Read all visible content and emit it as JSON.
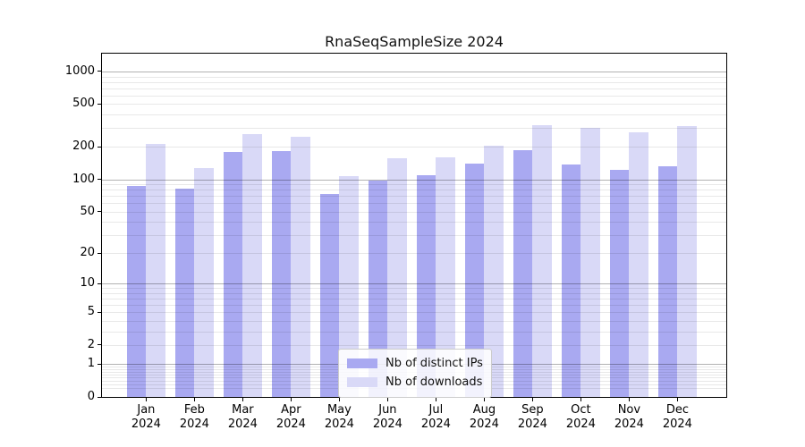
{
  "title": "RnaSeqSampleSize 2024",
  "chart_data": {
    "type": "bar",
    "title": "RnaSeqSampleSize 2024",
    "scale": "log1p",
    "categories": [
      "Jan",
      "Feb",
      "Mar",
      "Apr",
      "May",
      "Jun",
      "Jul",
      "Aug",
      "Sep",
      "Oct",
      "Nov",
      "Dec"
    ],
    "x_tick_second_line": "2024",
    "series": [
      {
        "name": "Nb of distinct IPs",
        "color": "#a9a9f1",
        "values": [
          87,
          82,
          180,
          183,
          73,
          98,
          110,
          141,
          187,
          138,
          123,
          133
        ]
      },
      {
        "name": "Nb of downloads",
        "color": "#d9d9f7",
        "values": [
          215,
          127,
          264,
          248,
          107,
          157,
          160,
          205,
          320,
          303,
          275,
          315
        ]
      }
    ],
    "y_ticks": [
      0,
      1,
      2,
      5,
      10,
      20,
      50,
      100,
      200,
      500,
      1000
    ],
    "y_major_gridlines": [
      1,
      10,
      100,
      1000
    ],
    "ylim": [
      0,
      1460
    ],
    "xlabel": "",
    "ylabel": "",
    "grid": true,
    "legend_position": "lower-center"
  },
  "colors": {
    "bar_dark": "#a9a9f1",
    "bar_light": "#d9d9f7",
    "spine": "#000000",
    "major_grid": "#b3b3b3",
    "minor_grid": "#e8e8e8",
    "background": "#ffffff"
  }
}
